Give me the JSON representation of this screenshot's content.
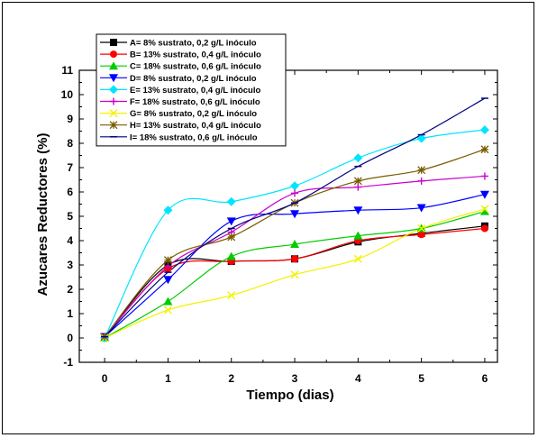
{
  "chart_data": {
    "type": "line",
    "title": "",
    "xlabel": "Tiempo (dias)",
    "ylabel": "Azucares Reductores (%)",
    "xlim": [
      -0.4,
      6.2
    ],
    "ylim": [
      -1,
      11
    ],
    "xticks": [
      0,
      1,
      2,
      3,
      4,
      5,
      6
    ],
    "yticks": [
      -1,
      0,
      1,
      2,
      3,
      4,
      5,
      6,
      7,
      8,
      9,
      10,
      11
    ],
    "legend_position": "top-left",
    "x": [
      0,
      1,
      2,
      3,
      4,
      5,
      6
    ],
    "series": [
      {
        "name": "A= 8% sustrato, 0,2 g/L inóculo",
        "color": "#000000",
        "marker": "square",
        "values": [
          0.05,
          3.0,
          3.15,
          3.25,
          3.95,
          4.3,
          4.6
        ]
      },
      {
        "name": "B= 13% sustrato, 0,4 g/L inóculo",
        "color": "#ff0000",
        "marker": "circle",
        "values": [
          0.05,
          2.85,
          3.15,
          3.25,
          4.0,
          4.25,
          4.5
        ]
      },
      {
        "name": "C= 18% sustrato, 0,6 g/L inóculo",
        "color": "#00cc00",
        "marker": "triangle-up",
        "values": [
          0.0,
          1.5,
          3.35,
          3.85,
          4.2,
          4.5,
          5.2
        ]
      },
      {
        "name": "D= 8% sustrato, 0,2 g/L inóculo",
        "color": "#0000ff",
        "marker": "triangle-down",
        "values": [
          0.05,
          2.4,
          4.8,
          5.1,
          5.25,
          5.35,
          5.9
        ]
      },
      {
        "name": "E= 13% sustrato, 0,4 g/L inóculo",
        "color": "#00e5ff",
        "marker": "diamond",
        "values": [
          0.0,
          5.25,
          5.6,
          6.25,
          7.4,
          8.2,
          8.55
        ]
      },
      {
        "name": "F= 18% sustrato, 0,6 g/L inóculo",
        "color": "#cc00cc",
        "marker": "plus",
        "values": [
          0.05,
          2.95,
          4.35,
          5.95,
          6.2,
          6.45,
          6.65
        ]
      },
      {
        "name": "G= 8% sustrato, 0,2 g/L inóculo",
        "color": "#f2f200",
        "marker": "x",
        "values": [
          0.0,
          1.15,
          1.75,
          2.6,
          3.25,
          4.5,
          5.3
        ]
      },
      {
        "name": "H= 13% sustrato, 0,4 g/L inóculo",
        "color": "#7a5c00",
        "marker": "star",
        "values": [
          0.05,
          3.2,
          4.15,
          5.55,
          6.45,
          6.9,
          7.75
        ]
      },
      {
        "name": "I= 18% sustrato, 0,6 g/L inóculo",
        "color": "#000080",
        "marker": "dash",
        "values": [
          0.05,
          2.7,
          4.5,
          5.55,
          7.05,
          8.35,
          9.85
        ]
      }
    ]
  }
}
